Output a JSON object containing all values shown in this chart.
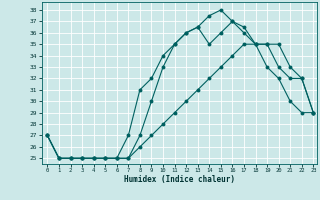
{
  "title": "",
  "xlabel": "Humidex (Indice chaleur)",
  "ylabel": "",
  "bg_color": "#cce8e8",
  "line_color": "#006060",
  "grid_color": "#ffffff",
  "xlim": [
    -0.5,
    23.3
  ],
  "ylim": [
    24.5,
    38.7
  ],
  "xticks": [
    0,
    1,
    2,
    3,
    4,
    5,
    6,
    7,
    8,
    9,
    10,
    11,
    12,
    13,
    14,
    15,
    16,
    17,
    18,
    19,
    20,
    21,
    22,
    23
  ],
  "yticks": [
    25,
    26,
    27,
    28,
    29,
    30,
    31,
    32,
    33,
    34,
    35,
    36,
    37,
    38
  ],
  "line1_x": [
    0,
    1,
    2,
    3,
    4,
    5,
    6,
    7,
    8,
    9,
    10,
    11,
    12,
    13,
    14,
    15,
    16,
    17,
    18,
    19,
    20,
    21,
    22,
    23
  ],
  "line1_y": [
    27,
    25,
    25,
    25,
    25,
    25,
    25,
    25,
    26,
    27,
    28,
    29,
    30,
    31,
    32,
    33,
    34,
    35,
    35,
    33,
    32,
    30,
    29,
    29
  ],
  "line2_x": [
    0,
    1,
    2,
    3,
    4,
    5,
    6,
    7,
    8,
    9,
    10,
    11,
    12,
    13,
    14,
    15,
    16,
    17,
    18,
    19,
    20,
    21,
    22,
    23
  ],
  "line2_y": [
    27,
    25,
    25,
    25,
    25,
    25,
    25,
    27,
    31,
    32,
    34,
    35,
    36,
    36.5,
    35,
    36,
    37,
    36,
    35,
    35,
    33,
    32,
    32,
    29
  ],
  "line3_x": [
    0,
    1,
    2,
    3,
    4,
    5,
    6,
    7,
    8,
    9,
    10,
    11,
    12,
    13,
    14,
    15,
    16,
    17,
    18,
    19,
    20,
    21,
    22,
    23
  ],
  "line3_y": [
    27,
    25,
    25,
    25,
    25,
    25,
    25,
    25,
    27,
    30,
    33,
    35,
    36,
    36.5,
    37.5,
    38,
    37,
    36.5,
    35,
    35,
    35,
    33,
    32,
    29
  ]
}
